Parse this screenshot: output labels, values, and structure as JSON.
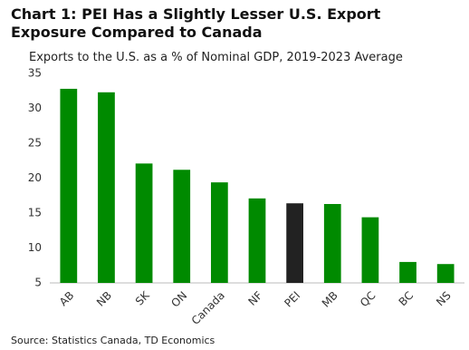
{
  "chart_data": {
    "type": "bar",
    "title": "Chart 1: PEI Has a Slightly Lesser U.S. Export Exposure Compared to Canada",
    "subtitle": "Exports to the U.S. as a % of Nominal GDP, 2019-2023 Average",
    "source": "Source: Statistics Canada, TD Economics",
    "categories": [
      "AB",
      "NB",
      "SK",
      "ON",
      "Canada",
      "NF",
      "PEI",
      "MB",
      "QC",
      "BC",
      "NS"
    ],
    "values": [
      32.8,
      32.3,
      22.1,
      21.2,
      19.4,
      17.1,
      16.4,
      16.3,
      14.4,
      8.0,
      7.7
    ],
    "colors": [
      "#008a00",
      "#008a00",
      "#008a00",
      "#008a00",
      "#008a00",
      "#008a00",
      "#222222",
      "#008a00",
      "#008a00",
      "#008a00",
      "#008a00"
    ],
    "ylim": [
      5,
      35
    ],
    "yticks": [
      5,
      10,
      15,
      20,
      25,
      30,
      35
    ],
    "grid": false
  }
}
